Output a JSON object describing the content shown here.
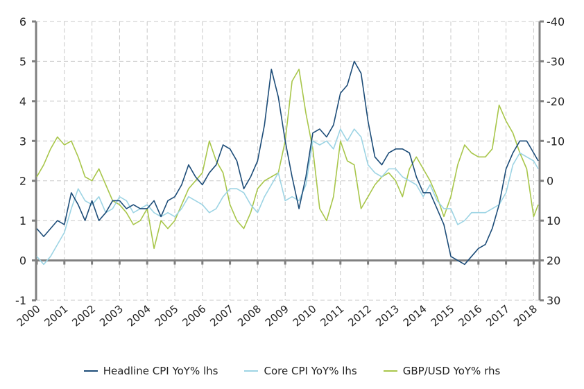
{
  "chart_data": {
    "type": "line",
    "title": "",
    "left_axis": {
      "ylim": [
        -1,
        6
      ],
      "ticks": [
        "-1",
        "0",
        "1",
        "2",
        "3",
        "4",
        "5",
        "6"
      ]
    },
    "right_axis": {
      "ylim": [
        30,
        -40
      ],
      "inverted": true,
      "ticks": [
        "30",
        "20",
        "10",
        "0",
        "-10",
        "-20",
        "-30",
        "-40"
      ]
    },
    "x_ticks": [
      "2000",
      "2001",
      "2002",
      "2003",
      "2004",
      "2005",
      "2006",
      "2007",
      "2008",
      "2009",
      "2010",
      "2011",
      "2012",
      "2013",
      "2014",
      "2015",
      "2016",
      "2017",
      "2018"
    ],
    "grid": true,
    "legend_position": "bottom",
    "x": [
      "2000-01",
      "2000-04",
      "2000-07",
      "2000-10",
      "2001-01",
      "2001-04",
      "2001-07",
      "2001-10",
      "2002-01",
      "2002-04",
      "2002-07",
      "2002-10",
      "2003-01",
      "2003-04",
      "2003-07",
      "2003-10",
      "2004-01",
      "2004-04",
      "2004-07",
      "2004-10",
      "2005-01",
      "2005-04",
      "2005-07",
      "2005-10",
      "2006-01",
      "2006-04",
      "2006-07",
      "2006-10",
      "2007-01",
      "2007-04",
      "2007-07",
      "2007-10",
      "2008-01",
      "2008-04",
      "2008-07",
      "2008-10",
      "2009-01",
      "2009-04",
      "2009-07",
      "2009-10",
      "2010-01",
      "2010-04",
      "2010-07",
      "2010-10",
      "2011-01",
      "2011-04",
      "2011-07",
      "2011-10",
      "2012-01",
      "2012-04",
      "2012-07",
      "2012-10",
      "2013-01",
      "2013-04",
      "2013-07",
      "2013-10",
      "2014-01",
      "2014-04",
      "2014-07",
      "2014-10",
      "2015-01",
      "2015-04",
      "2015-07",
      "2015-10",
      "2016-01",
      "2016-04",
      "2016-07",
      "2016-10",
      "2017-01",
      "2017-04",
      "2017-07",
      "2017-10",
      "2018-01",
      "2018-03"
    ],
    "series": [
      {
        "name": "Headline CPI YoY% lhs",
        "axis": "left",
        "color": "#1c4c78",
        "values": [
          0.8,
          0.6,
          0.8,
          1.0,
          0.9,
          1.7,
          1.4,
          1.0,
          1.5,
          1.0,
          1.2,
          1.5,
          1.5,
          1.3,
          1.4,
          1.3,
          1.3,
          1.5,
          1.1,
          1.5,
          1.6,
          1.9,
          2.4,
          2.1,
          1.9,
          2.2,
          2.4,
          2.9,
          2.8,
          2.5,
          1.8,
          2.1,
          2.5,
          3.4,
          4.8,
          4.1,
          3.0,
          2.1,
          1.3,
          2.1,
          3.2,
          3.3,
          3.1,
          3.4,
          4.2,
          4.4,
          5.0,
          4.7,
          3.5,
          2.6,
          2.4,
          2.7,
          2.8,
          2.8,
          2.7,
          2.1,
          1.7,
          1.7,
          1.3,
          0.9,
          0.1,
          0.0,
          -0.1,
          0.1,
          0.3,
          0.4,
          0.8,
          1.4,
          2.3,
          2.7,
          3.0,
          3.0,
          2.7,
          2.5
        ]
      },
      {
        "name": "Core CPI YoY% lhs",
        "axis": "left",
        "color": "#9dd4e4",
        "values": [
          0.1,
          -0.1,
          0.1,
          0.4,
          0.7,
          1.3,
          1.8,
          1.5,
          1.4,
          1.6,
          1.2,
          1.3,
          1.6,
          1.5,
          1.2,
          1.3,
          1.4,
          1.2,
          1.1,
          1.2,
          1.1,
          1.3,
          1.6,
          1.5,
          1.4,
          1.2,
          1.3,
          1.6,
          1.8,
          1.8,
          1.7,
          1.4,
          1.2,
          1.6,
          1.9,
          2.2,
          1.5,
          1.6,
          1.5,
          1.9,
          3.0,
          2.9,
          3.0,
          2.8,
          3.3,
          3.0,
          3.3,
          3.1,
          2.4,
          2.2,
          2.1,
          2.3,
          2.3,
          2.1,
          2.0,
          1.9,
          1.6,
          1.9,
          1.5,
          1.3,
          1.3,
          0.9,
          1.0,
          1.2,
          1.2,
          1.2,
          1.3,
          1.4,
          1.7,
          2.4,
          2.7,
          2.6,
          2.5,
          2.3
        ]
      },
      {
        "name": "GBP/USD YoY% rhs",
        "axis": "right",
        "color": "#a8c64a",
        "values": [
          -1,
          -4,
          -8,
          -11,
          -9,
          -10,
          -6,
          -1,
          0,
          -3,
          1,
          5,
          6,
          8,
          11,
          10,
          7,
          17,
          10,
          12,
          10,
          6,
          2,
          0,
          -2,
          -10,
          -5,
          -2,
          6,
          10,
          12,
          8,
          2,
          0,
          -1,
          -2,
          -10,
          -25,
          -28,
          -17,
          -8,
          7,
          10,
          4,
          -10,
          -5,
          -4,
          7,
          4,
          1,
          -1,
          -2,
          0,
          4,
          -3,
          -6,
          -3,
          0,
          4,
          9,
          4,
          -4,
          -9,
          -7,
          -6,
          -6,
          -8,
          -19,
          -15,
          -12,
          -7,
          -3,
          9,
          6
        ]
      }
    ]
  }
}
